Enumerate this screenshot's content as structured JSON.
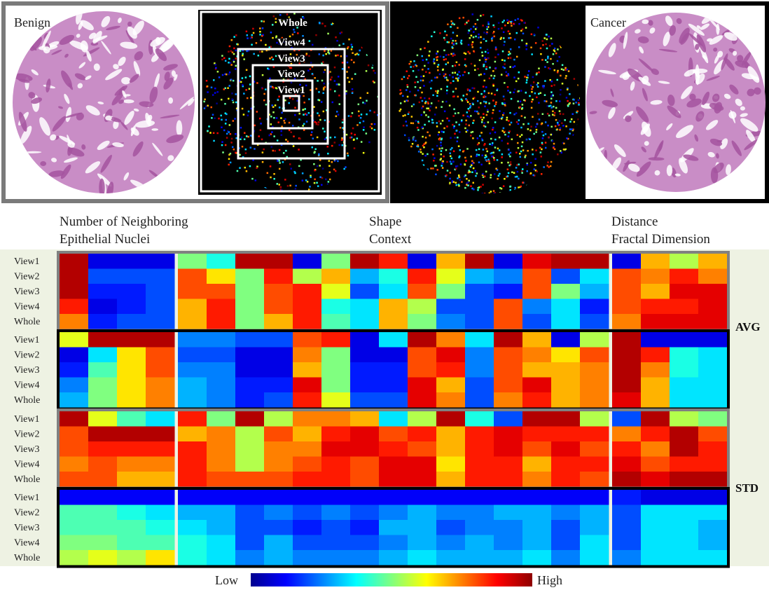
{
  "images": {
    "benign_label": "Benign",
    "cancer_label": "Cancer",
    "view_labels": [
      "Whole",
      "View4",
      "View3",
      "View2",
      "View1"
    ]
  },
  "heatmap": {
    "group_labels": [
      [
        "Number of Neighboring",
        "Epithelial Nuclei"
      ],
      [
        "Shape",
        "Context"
      ],
      [
        "Distance",
        "Fractal Dimension"
      ]
    ],
    "row_labels": [
      "View1",
      "View2",
      "View3",
      "View4",
      "Whole"
    ],
    "stat_labels": [
      "AVG",
      "STD"
    ],
    "colorbar": {
      "low": "Low",
      "high": "High"
    },
    "panels": [
      {
        "border": "#808080",
        "rows": [
          [
            [
              0.95,
              0.1,
              0.1,
              0.1
            ],
            [
              0.5,
              0.4,
              0.95,
              0.95,
              0.1,
              0.5,
              0.95,
              0.85,
              0.1,
              0.7,
              0.95,
              0.1,
              0.9,
              0.95,
              0.95
            ],
            [
              0.1,
              0.7,
              0.55,
              0.7
            ]
          ],
          [
            [
              0.95,
              0.2,
              0.2,
              0.2
            ],
            [
              0.8,
              0.65,
              0.5,
              0.85,
              0.55,
              0.7,
              0.3,
              0.4,
              0.85,
              0.6,
              0.3,
              0.25,
              0.8,
              0.2,
              0.35
            ],
            [
              0.8,
              0.75,
              0.85,
              0.75
            ]
          ],
          [
            [
              0.95,
              0.15,
              0.15,
              0.2
            ],
            [
              0.8,
              0.8,
              0.5,
              0.8,
              0.85,
              0.6,
              0.2,
              0.35,
              0.8,
              0.5,
              0.2,
              0.15,
              0.8,
              0.5,
              0.3
            ],
            [
              0.8,
              0.7,
              0.9,
              0.9
            ]
          ],
          [
            [
              0.85,
              0.1,
              0.15,
              0.2
            ],
            [
              0.7,
              0.85,
              0.5,
              0.8,
              0.85,
              0.4,
              0.35,
              0.7,
              0.55,
              0.2,
              0.2,
              0.8,
              0.25,
              0.35,
              0.15
            ],
            [
              0.8,
              0.85,
              0.85,
              0.9
            ]
          ],
          [
            [
              0.75,
              0.15,
              0.2,
              0.2
            ],
            [
              0.7,
              0.85,
              0.5,
              0.7,
              0.85,
              0.45,
              0.35,
              0.7,
              0.5,
              0.25,
              0.2,
              0.8,
              0.2,
              0.35,
              0.2
            ],
            [
              0.75,
              0.9,
              0.9,
              0.9
            ]
          ]
        ]
      },
      {
        "border": "#000000",
        "rows": [
          [
            [
              0.6,
              0.95,
              0.95,
              0.95
            ],
            [
              0.25,
              0.25,
              0.2,
              0.2,
              0.8,
              0.85,
              0.1,
              0.35,
              0.95,
              0.75,
              0.35,
              0.95,
              0.7,
              0.1,
              0.55
            ],
            [
              0.95,
              0.1,
              0.1,
              0.1
            ]
          ],
          [
            [
              0.1,
              0.35,
              0.65,
              0.8
            ],
            [
              0.2,
              0.2,
              0.1,
              0.1,
              0.75,
              0.5,
              0.1,
              0.1,
              0.8,
              0.9,
              0.25,
              0.8,
              0.75,
              0.65,
              0.8
            ],
            [
              0.95,
              0.85,
              0.4,
              0.35
            ]
          ],
          [
            [
              0.15,
              0.45,
              0.65,
              0.8
            ],
            [
              0.25,
              0.25,
              0.1,
              0.1,
              0.7,
              0.5,
              0.15,
              0.15,
              0.8,
              0.85,
              0.25,
              0.8,
              0.7,
              0.7,
              0.75
            ],
            [
              0.95,
              0.75,
              0.4,
              0.35
            ]
          ],
          [
            [
              0.25,
              0.5,
              0.65,
              0.75
            ],
            [
              0.3,
              0.25,
              0.15,
              0.15,
              0.9,
              0.5,
              0.15,
              0.15,
              0.9,
              0.7,
              0.2,
              0.8,
              0.9,
              0.7,
              0.75
            ],
            [
              0.95,
              0.7,
              0.35,
              0.35
            ]
          ],
          [
            [
              0.3,
              0.5,
              0.65,
              0.75
            ],
            [
              0.3,
              0.25,
              0.15,
              0.2,
              0.85,
              0.6,
              0.2,
              0.2,
              0.9,
              0.75,
              0.2,
              0.75,
              0.85,
              0.7,
              0.75
            ],
            [
              0.9,
              0.7,
              0.35,
              0.35
            ]
          ]
        ]
      },
      {
        "border": "#808080",
        "rows": [
          [
            [
              0.95,
              0.6,
              0.45,
              0.35
            ],
            [
              0.85,
              0.5,
              0.95,
              0.55,
              0.75,
              0.75,
              0.7,
              0.35,
              0.55,
              0.95,
              0.4,
              0.2,
              0.95,
              0.95,
              0.55
            ],
            [
              0.2,
              0.95,
              0.55,
              0.5
            ]
          ],
          [
            [
              0.8,
              0.95,
              0.95,
              0.95
            ],
            [
              0.7,
              0.75,
              0.55,
              0.8,
              0.7,
              0.85,
              0.9,
              0.8,
              0.85,
              0.7,
              0.85,
              0.9,
              0.85,
              0.85,
              0.85
            ],
            [
              0.75,
              0.85,
              0.95,
              0.8
            ]
          ],
          [
            [
              0.8,
              0.85,
              0.85,
              0.85
            ],
            [
              0.85,
              0.75,
              0.55,
              0.75,
              0.75,
              0.9,
              0.9,
              0.85,
              0.8,
              0.7,
              0.85,
              0.9,
              0.8,
              0.9,
              0.8
            ],
            [
              0.85,
              0.75,
              0.95,
              0.85
            ]
          ],
          [
            [
              0.75,
              0.8,
              0.75,
              0.75
            ],
            [
              0.85,
              0.75,
              0.55,
              0.75,
              0.8,
              0.85,
              0.8,
              0.9,
              0.9,
              0.65,
              0.85,
              0.85,
              0.7,
              0.85,
              0.85
            ],
            [
              0.9,
              0.8,
              0.85,
              0.85
            ]
          ],
          [
            [
              0.8,
              0.8,
              0.7,
              0.7
            ],
            [
              0.85,
              0.8,
              0.8,
              0.8,
              0.85,
              0.85,
              0.8,
              0.9,
              0.9,
              0.7,
              0.85,
              0.85,
              0.75,
              0.85,
              0.8
            ],
            [
              0.95,
              0.9,
              0.95,
              0.95
            ]
          ]
        ]
      },
      {
        "border": "#000000",
        "rows": [
          [
            [
              0.12,
              0.12,
              0.12,
              0.12
            ],
            [
              0.12,
              0.12,
              0.12,
              0.12,
              0.12,
              0.12,
              0.12,
              0.12,
              0.12,
              0.12,
              0.12,
              0.12,
              0.12,
              0.12,
              0.12
            ],
            [
              0.15,
              0.1,
              0.1,
              0.1
            ]
          ],
          [
            [
              0.45,
              0.45,
              0.4,
              0.35
            ],
            [
              0.3,
              0.3,
              0.2,
              0.25,
              0.2,
              0.25,
              0.2,
              0.25,
              0.3,
              0.25,
              0.25,
              0.3,
              0.3,
              0.25,
              0.3
            ],
            [
              0.2,
              0.35,
              0.35,
              0.35
            ]
          ],
          [
            [
              0.45,
              0.45,
              0.45,
              0.4
            ],
            [
              0.35,
              0.3,
              0.2,
              0.2,
              0.15,
              0.2,
              0.15,
              0.3,
              0.3,
              0.2,
              0.25,
              0.25,
              0.3,
              0.2,
              0.3
            ],
            [
              0.2,
              0.35,
              0.35,
              0.3
            ]
          ],
          [
            [
              0.5,
              0.5,
              0.45,
              0.45
            ],
            [
              0.4,
              0.35,
              0.2,
              0.3,
              0.2,
              0.2,
              0.2,
              0.25,
              0.3,
              0.25,
              0.3,
              0.25,
              0.3,
              0.2,
              0.35
            ],
            [
              0.2,
              0.35,
              0.35,
              0.3
            ]
          ],
          [
            [
              0.55,
              0.6,
              0.55,
              0.65
            ],
            [
              0.4,
              0.35,
              0.25,
              0.3,
              0.25,
              0.25,
              0.25,
              0.3,
              0.35,
              0.3,
              0.3,
              0.3,
              0.35,
              0.25,
              0.35
            ],
            [
              0.25,
              0.35,
              0.35,
              0.35
            ]
          ]
        ]
      }
    ]
  }
}
